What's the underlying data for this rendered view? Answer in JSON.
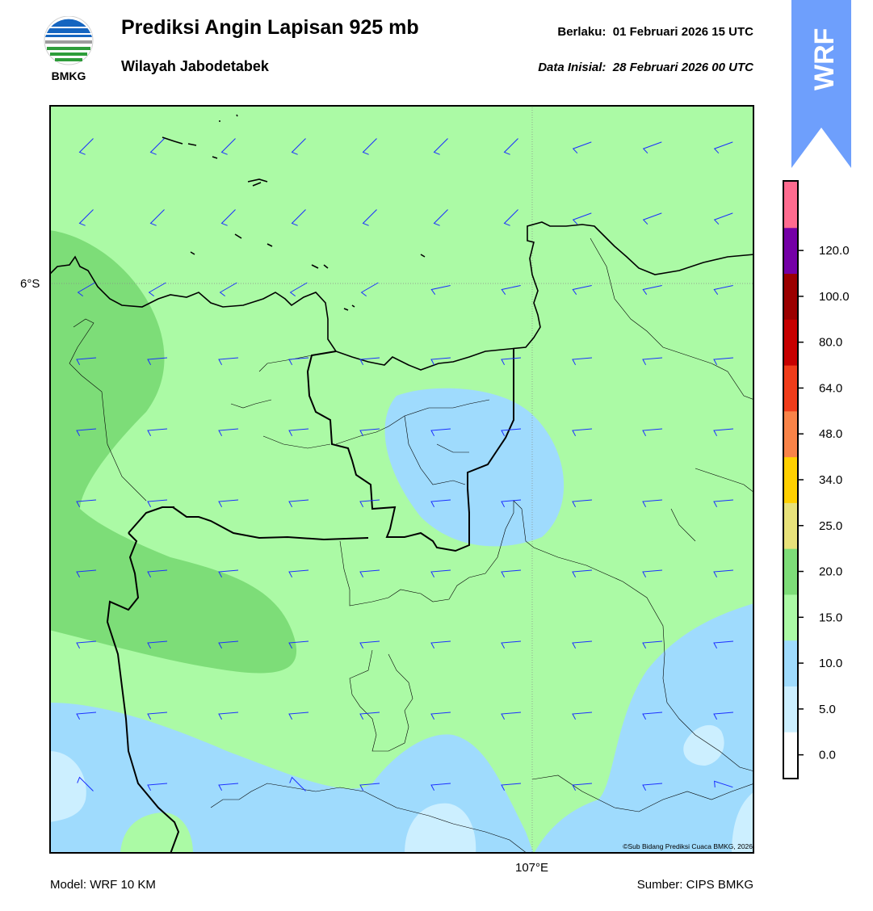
{
  "header": {
    "title": "Prediksi Angin Lapisan 925 mb",
    "subtitle": "Wilayah Jabodetabek",
    "valid_label": "Berlaku:",
    "valid_value": "01 Februari 2026 15 UTC",
    "init_label": "Data Inisial:",
    "init_value": "28 Februari 2026 00 UTC"
  },
  "logo": {
    "text": "BMKG",
    "icon": "bmkg-logo"
  },
  "badge": {
    "text": "WRF",
    "color": "#6e9ffc"
  },
  "map": {
    "lat_label": "6°S",
    "lon_label": "107°E",
    "credit": "©Sub Bidang Prediksi Cuaca BMKG, 2026",
    "background_color": "#abfaa5",
    "barb_color": "#1a2eff"
  },
  "footer": {
    "model": "Model: WRF 10 KM",
    "source": "Sumber: CIPS BMKG"
  },
  "colorbar": {
    "labels": [
      "0.0",
      "5.0",
      "10.0",
      "15.0",
      "20.0",
      "25.0",
      "34.0",
      "48.0",
      "64.0",
      "80.0",
      "100.0",
      "120.0"
    ],
    "colors": [
      "#ffffff",
      "#ccefff",
      "#9fdbfd",
      "#abfaa5",
      "#7ddd78",
      "#e8e27a",
      "#ffd000",
      "#f98348",
      "#f03c1a",
      "#c70000",
      "#9b0000",
      "#7400a6",
      "#ff6b8f"
    ]
  }
}
